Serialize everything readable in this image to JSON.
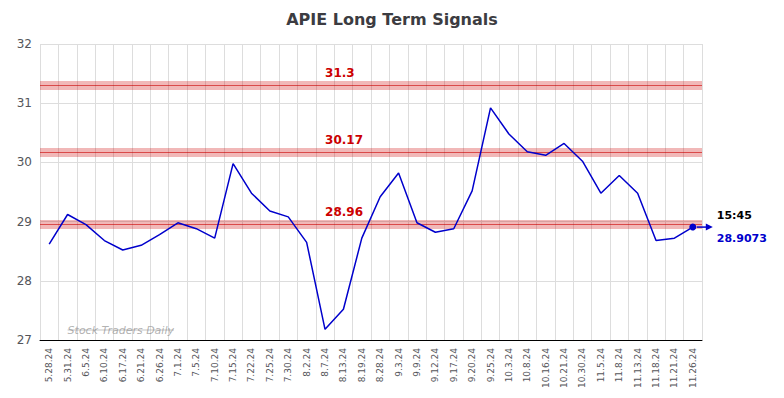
{
  "chart_data": {
    "type": "line",
    "title": "APIE Long Term Signals",
    "categories": [
      "5.28.24",
      "5.31.24",
      "6.5.24",
      "6.10.24",
      "6.17.24",
      "6.21.24",
      "6.26.24",
      "7.1.24",
      "7.5.24",
      "7.10.24",
      "7.15.24",
      "7.22.24",
      "7.25.24",
      "7.30.24",
      "8.2.24",
      "8.7.24",
      "8.13.24",
      "8.19.24",
      "8.28.24",
      "9.3.24",
      "9.9.24",
      "9.12.24",
      "9.17.24",
      "9.20.24",
      "9.25.24",
      "10.3.24",
      "10.8.24",
      "10.16.24",
      "10.21.24",
      "10.30.24",
      "11.5.24",
      "11.8.24",
      "11.13.24",
      "11.18.24",
      "11.21.24",
      "11.26.24"
    ],
    "values": [
      28.62,
      29.12,
      28.95,
      28.68,
      28.52,
      28.6,
      28.78,
      28.98,
      28.88,
      28.72,
      29.98,
      29.48,
      29.18,
      29.08,
      28.65,
      27.18,
      27.52,
      28.72,
      29.42,
      29.82,
      28.98,
      28.82,
      28.88,
      29.52,
      30.92,
      30.48,
      30.18,
      30.12,
      30.32,
      30.02,
      29.48,
      29.78,
      29.48,
      28.68,
      28.72,
      28.9073
    ],
    "color": "#0000cc",
    "ylim": [
      27.0,
      32.0
    ],
    "yticks": [
      27,
      28,
      29,
      30,
      31,
      32
    ],
    "grid": true,
    "hlines": [
      {
        "y": 31.3,
        "label": "31.3",
        "color": "#cc0000"
      },
      {
        "y": 30.17,
        "label": "30.17",
        "color": "#cc0000"
      },
      {
        "y": 28.96,
        "label": "28.96",
        "color": "#cc0000"
      }
    ],
    "watermark": "Stock Traders Daily",
    "last_time_label": "15:45",
    "last_value_label": "28.9073"
  }
}
